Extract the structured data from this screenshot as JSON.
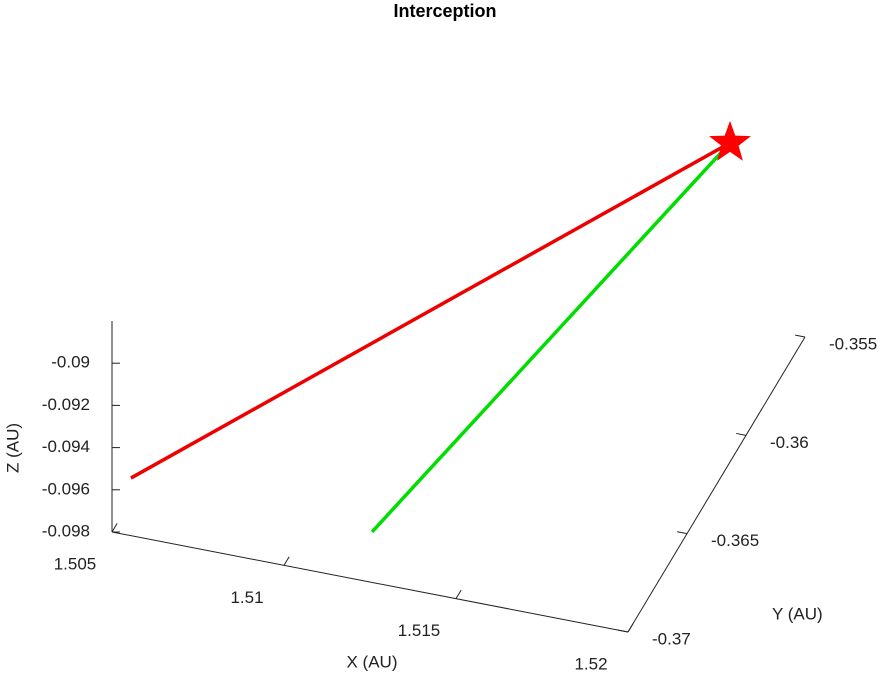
{
  "chart_data": {
    "type": "line3d",
    "title": "Interception",
    "xlabel": "X (AU)",
    "ylabel": "Y (AU)",
    "zlabel": "Z (AU)",
    "xlim": [
      1.505,
      1.52
    ],
    "ylim": [
      -0.37,
      -0.355
    ],
    "zlim": [
      -0.098,
      -0.088
    ],
    "xticks": [
      1.505,
      1.51,
      1.515,
      1.52
    ],
    "yticks": [
      -0.37,
      -0.365,
      -0.36,
      -0.355
    ],
    "zticks": [
      -0.098,
      -0.096,
      -0.094,
      -0.092,
      -0.09
    ],
    "series": [
      {
        "color": "#ee0000",
        "x": [
          1.50555,
          1.51782
        ],
        "y": [
          -0.37,
          -0.355
        ],
        "z": [
          -0.09527,
          -0.08949
        ]
      },
      {
        "color": "#00dd00",
        "x": [
          1.51177,
          1.51782
        ],
        "y": [
          -0.3677,
          -0.355
        ],
        "z": [
          -0.098,
          -0.08949
        ]
      },
      {
        "color": "#ff0000",
        "marker": "star",
        "x": [
          1.51782
        ],
        "y": [
          -0.355
        ],
        "z": [
          -0.08949
        ]
      }
    ]
  }
}
